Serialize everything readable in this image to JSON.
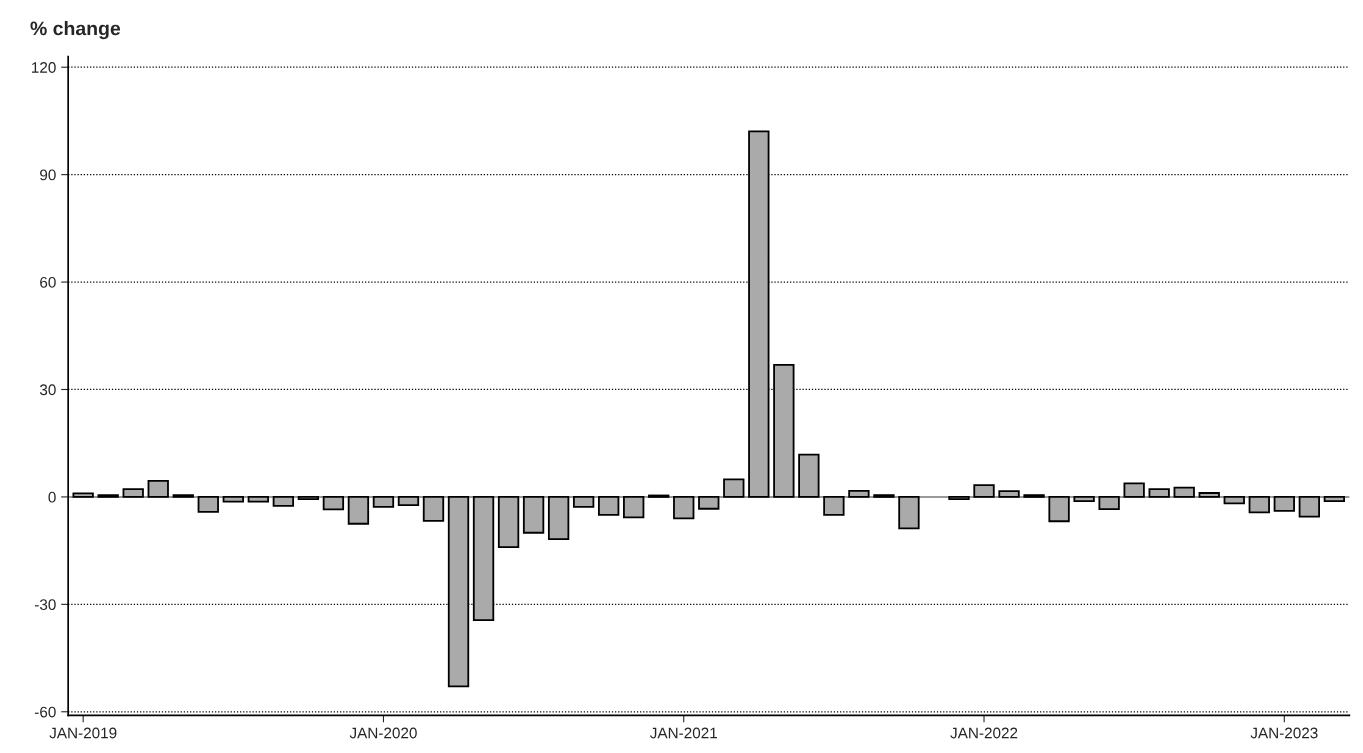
{
  "chart_data": {
    "type": "bar",
    "ylabel": "% change",
    "categories": [
      "JAN-2019",
      null,
      null,
      null,
      null,
      null,
      null,
      null,
      null,
      null,
      null,
      null,
      "JAN-2020",
      null,
      null,
      null,
      null,
      null,
      null,
      null,
      null,
      null,
      null,
      null,
      "JAN-2021",
      null,
      null,
      null,
      null,
      null,
      null,
      null,
      null,
      null,
      null,
      null,
      "JAN-2022",
      null,
      null,
      null,
      null,
      null,
      null,
      null,
      null,
      null,
      null,
      null,
      "JAN-2023",
      null,
      null
    ],
    "values": [
      1.0,
      0.5,
      2.2,
      4.5,
      0.5,
      -4.2,
      -1.3,
      -1.3,
      -2.5,
      -0.6,
      -3.5,
      -7.5,
      -2.8,
      -2.3,
      -6.7,
      -52.9,
      -34.4,
      -14.0,
      -10.0,
      -11.8,
      -2.8,
      -5.0,
      -5.7,
      0.4,
      -6.0,
      -3.3,
      4.9,
      102.1,
      36.9,
      11.8,
      -5.0,
      1.7,
      0.5,
      -8.8,
      null,
      -0.6,
      3.3,
      1.6,
      0.5,
      -6.8,
      -1.2,
      -3.4,
      3.8,
      2.2,
      2.6,
      1.1,
      -1.8,
      -4.3,
      -3.9,
      -5.5,
      -1.2
    ],
    "color": "#aaaaaa",
    "ylim": [
      -61,
      123
    ],
    "yticks": [
      -60,
      -30,
      0,
      30,
      60,
      90,
      120
    ],
    "grid": "y",
    "ref_lines": [
      {
        "axis": "y",
        "value": 0,
        "color": "#999999"
      }
    ]
  }
}
